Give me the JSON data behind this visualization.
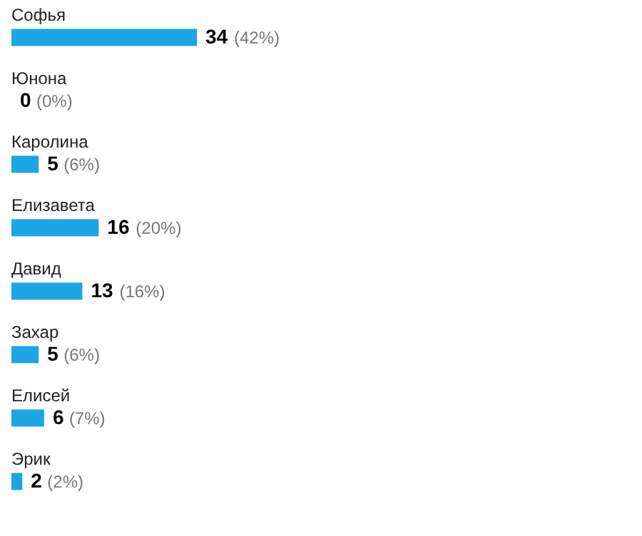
{
  "chart_data": {
    "type": "bar",
    "orientation": "horizontal",
    "categories": [
      "Софья",
      "Юнона",
      "Каролина",
      "Елизавета",
      "Давид",
      "Захар",
      "Елисей",
      "Эрик"
    ],
    "values": [
      34,
      0,
      5,
      16,
      13,
      5,
      6,
      2
    ],
    "data_labels": true,
    "annotations": [
      {
        "text": "(42%)",
        "x": 34,
        "y": "Софья"
      },
      {
        "text": "(0%)",
        "x": 0,
        "y": "Юнона"
      },
      {
        "text": "(6%)",
        "x": 5,
        "y": "Каролина"
      },
      {
        "text": "(20%)",
        "x": 16,
        "y": "Елизавета"
      },
      {
        "text": "(16%)",
        "x": 13,
        "y": "Давид"
      },
      {
        "text": "(6%)",
        "x": 5,
        "y": "Захар"
      },
      {
        "text": "(7%)",
        "x": 6,
        "y": "Елисей"
      },
      {
        "text": "(2%)",
        "x": 2,
        "y": "Эрик"
      }
    ],
    "color": "#1ca6e4"
  }
}
